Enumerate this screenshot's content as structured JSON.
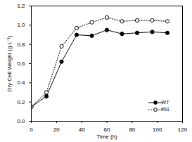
{
  "chart_data": {
    "type": "line",
    "x_label": "Time (h)",
    "y_label": "Dry Cell Weight (g L⁻¹)",
    "x": [
      0,
      12,
      24,
      36,
      48,
      60,
      72,
      84,
      96,
      108
    ],
    "series": [
      {
        "name": "WT",
        "color": "#000000",
        "marker": "filled_circle",
        "line_style": "solid",
        "values": [
          0.15,
          0.26,
          0.62,
          0.9,
          0.89,
          0.95,
          0.91,
          0.92,
          0.93,
          0.92
        ]
      },
      {
        "name": "#91",
        "color": "#000000",
        "marker": "open_circle",
        "line_style": "dotted",
        "values": [
          0.15,
          0.3,
          0.78,
          0.97,
          1.03,
          1.08,
          1.04,
          1.05,
          1.05,
          1.04
        ]
      }
    ],
    "xlim": [
      0,
      120
    ],
    "xticks": [
      0,
      20,
      40,
      60,
      80,
      100,
      120
    ],
    "ylim": [
      0,
      1.2
    ],
    "yticks": [
      {
        "value": 0,
        "label": "0.0"
      },
      0.2,
      0.4,
      0.6,
      0.8,
      {
        "value": 1,
        "label": "1.0"
      },
      1.2
    ],
    "grid": false,
    "legend": "lower right"
  }
}
